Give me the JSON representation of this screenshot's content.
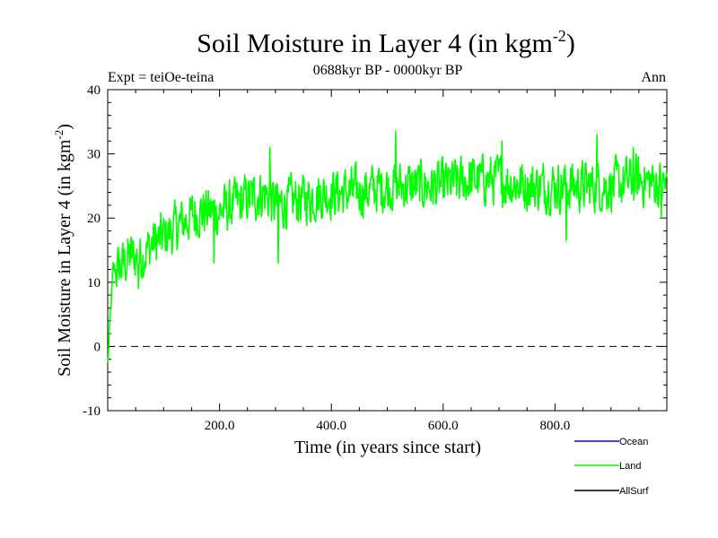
{
  "chart_data": {
    "type": "line",
    "title": "Soil Moisture in Layer 4 (in kgm",
    "title_sup": "-2",
    "title_close": ")",
    "subtitle_left": "Expt = teiOe-teina",
    "subtitle_center": "0688kyr BP - 0000kyr BP",
    "subtitle_right": "Ann",
    "xlabel": "Time (in years since start)",
    "ylabel": "Soil Moisture in Layer 4 (in kgm",
    "ylabel_sup": "-2",
    "ylabel_close": ")",
    "xlim": [
      0,
      1000
    ],
    "ylim": [
      -10,
      40
    ],
    "xticks": [
      200,
      400,
      600,
      800
    ],
    "xtick_labels": [
      "200.0",
      "400.0",
      "600.0",
      "800.0"
    ],
    "yticks": [
      -10,
      0,
      10,
      20,
      30,
      40
    ],
    "ytick_labels": [
      "-10",
      "0",
      "10",
      "20",
      "30",
      "40"
    ],
    "zero_line": 0,
    "series": [
      {
        "name": "Ocean",
        "color": "#0000ff",
        "values": []
      },
      {
        "name": "Land",
        "color": "#00ff00",
        "keypoints": [
          [
            0,
            -3
          ],
          [
            5,
            5
          ],
          [
            10,
            12
          ],
          [
            20,
            12
          ],
          [
            40,
            14
          ],
          [
            60,
            14
          ],
          [
            80,
            16
          ],
          [
            100,
            17
          ],
          [
            130,
            19
          ],
          [
            160,
            21
          ],
          [
            200,
            21
          ],
          [
            250,
            23
          ],
          [
            280,
            24
          ],
          [
            300,
            22
          ],
          [
            350,
            23
          ],
          [
            400,
            24
          ],
          [
            450,
            24
          ],
          [
            500,
            25
          ],
          [
            550,
            25
          ],
          [
            600,
            25
          ],
          [
            650,
            26
          ],
          [
            700,
            26
          ],
          [
            750,
            25
          ],
          [
            800,
            25
          ],
          [
            850,
            25
          ],
          [
            900,
            25
          ],
          [
            950,
            26
          ],
          [
            1000,
            25
          ]
        ],
        "spikes": [
          [
            55,
            9
          ],
          [
            190,
            13
          ],
          [
            290,
            31
          ],
          [
            305,
            13
          ],
          [
            515,
            33.5
          ],
          [
            705,
            32
          ],
          [
            820,
            16.5
          ],
          [
            875,
            33
          ],
          [
            940,
            31
          ],
          [
            990,
            20
          ]
        ],
        "noise_amplitude": 3.5
      },
      {
        "name": "AllSurf",
        "color": "#000000",
        "values": []
      }
    ],
    "legend_position": "bottom-right"
  }
}
